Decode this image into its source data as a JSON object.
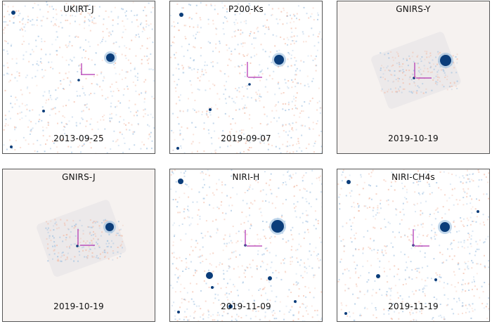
{
  "panels": [
    {
      "filter": "UKIRT-J",
      "date": "2013-09-25",
      "background": "noise"
    },
    {
      "filter": "P200-Ks",
      "date": "2019-09-07",
      "background": "noise"
    },
    {
      "filter": "GNIRS-Y",
      "date": "2019-10-19",
      "background": "flat"
    },
    {
      "filter": "GNIRS-J",
      "date": "2019-10-19",
      "background": "flat"
    },
    {
      "filter": "NIRI-H",
      "date": "2019-11-09",
      "background": "noise"
    },
    {
      "filter": "NIRI-CH4s",
      "date": "2019-11-19",
      "background": "noise"
    }
  ],
  "colors": {
    "source": "#0b3d7a",
    "positive_noise": "#9dbfe0",
    "negative_noise": "#f2b9a3",
    "reticle": "#b030b0",
    "flat_background": "#f6f2f0"
  }
}
